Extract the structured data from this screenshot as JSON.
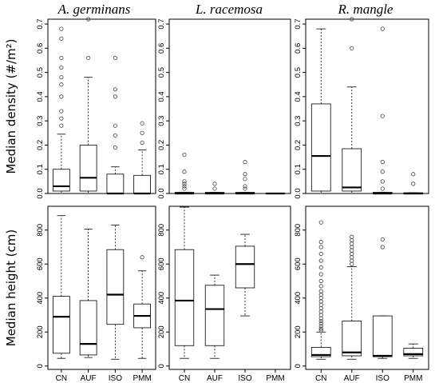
{
  "chart_data": {
    "type": "boxplot",
    "categories": [
      "CN",
      "AUF",
      "ISO",
      "PMM"
    ],
    "species": [
      "A. germinans",
      "L. racemosa",
      "R. mangle"
    ],
    "rows": [
      {
        "ylabel": "Median density (#/m²)",
        "ylim": [
          0,
          0.72
        ],
        "yticks": [
          "0.0",
          "0.1",
          "0.2",
          "0.3",
          "0.4",
          "0.5",
          "0.6",
          "0.7"
        ],
        "panels": [
          {
            "species": "A. germinans",
            "boxes": [
              {
                "category": "CN",
                "whisker_low": 0,
                "q1": 0.01,
                "median": 0.03,
                "q3": 0.1,
                "whisker_high": 0.245,
                "outliers": [
                  0.28,
                  0.31,
                  0.34,
                  0.4,
                  0.45,
                  0.48,
                  0.52,
                  0.56,
                  0.64,
                  0.68
                ]
              },
              {
                "category": "AUF",
                "whisker_low": 0,
                "q1": 0.01,
                "median": 0.065,
                "q3": 0.2,
                "whisker_high": 0.48,
                "outliers": [
                  0.56,
                  0.72
                ]
              },
              {
                "category": "ISO",
                "whisker_low": 0,
                "q1": 0,
                "median": 0,
                "q3": 0.08,
                "whisker_high": 0.11,
                "outliers": [
                  0.19,
                  0.24,
                  0.28,
                  0.4,
                  0.43,
                  0.56
                ]
              },
              {
                "category": "PMM",
                "whisker_low": 0,
                "q1": 0,
                "median": 0,
                "q3": 0.075,
                "whisker_high": 0.18,
                "outliers": [
                  0.21,
                  0.25,
                  0.29
                ]
              }
            ]
          },
          {
            "species": "L. racemosa",
            "boxes": [
              {
                "category": "CN",
                "whisker_low": 0,
                "q1": 0,
                "median": 0,
                "q3": 0.005,
                "whisker_high": 0.005,
                "outliers": [
                  0.02,
                  0.03,
                  0.04,
                  0.05,
                  0.09,
                  0.16
                ]
              },
              {
                "category": "AUF",
                "whisker_low": 0,
                "q1": 0,
                "median": 0,
                "q3": 0.005,
                "whisker_high": 0.005,
                "outliers": [
                  0.02,
                  0.04
                ]
              },
              {
                "category": "ISO",
                "whisker_low": 0,
                "q1": 0,
                "median": 0,
                "q3": 0.005,
                "whisker_high": 0.005,
                "outliers": [
                  0.02,
                  0.03,
                  0.06,
                  0.08,
                  0.13
                ]
              },
              {
                "category": "PMM",
                "whisker_low": 0,
                "q1": 0,
                "median": 0,
                "q3": 0.002,
                "whisker_high": 0.002,
                "outliers": []
              }
            ]
          },
          {
            "species": "R. mangle",
            "boxes": [
              {
                "category": "CN",
                "whisker_low": 0,
                "q1": 0.01,
                "median": 0.155,
                "q3": 0.37,
                "whisker_high": 0.68,
                "outliers": []
              },
              {
                "category": "AUF",
                "whisker_low": 0,
                "q1": 0.01,
                "median": 0.025,
                "q3": 0.185,
                "whisker_high": 0.44,
                "outliers": [
                  0.6,
                  0.72
                ]
              },
              {
                "category": "ISO",
                "whisker_low": 0,
                "q1": 0,
                "median": 0,
                "q3": 0.005,
                "whisker_high": 0.005,
                "outliers": [
                  0.02,
                  0.05,
                  0.09,
                  0.13,
                  0.32,
                  0.68
                ]
              },
              {
                "category": "PMM",
                "whisker_low": 0,
                "q1": 0,
                "median": 0,
                "q3": 0.003,
                "whisker_high": 0.003,
                "outliers": [
                  0.04,
                  0.08
                ]
              }
            ]
          }
        ]
      },
      {
        "ylabel": "Median height (cm)",
        "ylim": [
          -20,
          940
        ],
        "yticks": [
          "0",
          "200",
          "400",
          "600",
          "800"
        ],
        "panels": [
          {
            "species": "A. germinans",
            "boxes": [
              {
                "category": "CN",
                "whisker_low": 45,
                "q1": 75,
                "median": 290,
                "q3": 410,
                "whisker_high": 885,
                "outliers": []
              },
              {
                "category": "AUF",
                "whisker_low": 50,
                "q1": 65,
                "median": 130,
                "q3": 385,
                "whisker_high": 805,
                "outliers": []
              },
              {
                "category": "ISO",
                "whisker_low": 40,
                "q1": 245,
                "median": 420,
                "q3": 685,
                "whisker_high": 830,
                "outliers": []
              },
              {
                "category": "PMM",
                "whisker_low": 45,
                "q1": 225,
                "median": 295,
                "q3": 365,
                "whisker_high": 560,
                "outliers": [
                  640
                ]
              }
            ]
          },
          {
            "species": "L. racemosa",
            "boxes": [
              {
                "category": "CN",
                "whisker_low": 45,
                "q1": 120,
                "median": 385,
                "q3": 685,
                "whisker_high": 935,
                "outliers": []
              },
              {
                "category": "AUF",
                "whisker_low": 45,
                "q1": 120,
                "median": 335,
                "q3": 475,
                "whisker_high": 535,
                "outliers": []
              },
              {
                "category": "ISO",
                "whisker_low": 295,
                "q1": 460,
                "median": 600,
                "q3": 705,
                "whisker_high": 775,
                "outliers": []
              },
              {
                "category": "PMM",
                "whisker_low": null,
                "q1": null,
                "median": null,
                "q3": null,
                "whisker_high": null,
                "outliers": []
              }
            ]
          },
          {
            "species": "R. mangle",
            "boxes": [
              {
                "category": "CN",
                "whisker_low": 40,
                "q1": 55,
                "median": 65,
                "q3": 110,
                "whisker_high": 200,
                "outliers": [
                  210,
                  220,
                  235,
                  250,
                  265,
                  280,
                  300,
                  320,
                  340,
                  360,
                  380,
                  400,
                  420,
                  440,
                  470,
                  500,
                  540,
                  580,
                  620,
                  660,
                  700,
                  730,
                  845
                ]
              },
              {
                "category": "AUF",
                "whisker_low": 40,
                "q1": 60,
                "median": 80,
                "q3": 265,
                "whisker_high": 585,
                "outliers": [
                  600,
                  620,
                  640,
                  660,
                  680,
                  700,
                  720,
                  740,
                  760
                ]
              },
              {
                "category": "ISO",
                "whisker_low": 45,
                "q1": 55,
                "median": 60,
                "q3": 295,
                "whisker_high": 295,
                "outliers": [
                  700,
                  745
                ]
              },
              {
                "category": "PMM",
                "whisker_low": 45,
                "q1": 60,
                "median": 70,
                "q3": 105,
                "whisker_high": 130,
                "outliers": []
              }
            ]
          }
        ]
      }
    ]
  }
}
